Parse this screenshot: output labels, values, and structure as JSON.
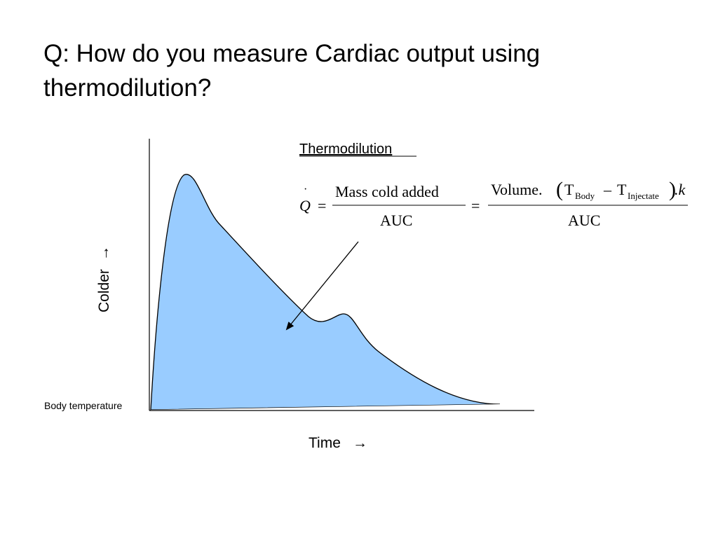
{
  "slide": {
    "title": "Q: How do you measure Cardiac output using thermodilution?"
  },
  "diagram": {
    "heading": "Thermodilution",
    "y_axis_label": "Colder",
    "x_axis_label": "Time",
    "baseline_label": "Body temperature",
    "arrow_glyph": "→",
    "curve_fill_color": "#99ccff",
    "formula": {
      "q_symbol": "Q",
      "q_dot": "·",
      "equals": "=",
      "numerator_1": "Mass cold added",
      "denominator_1": "AUC",
      "volume": "Volume.",
      "open_paren": "(",
      "t_body": "T",
      "body_sub": "Body",
      "minus": "–",
      "t_injectate": "T",
      "injectate_sub": "Injectate",
      "close_paren": ")",
      "k_factor": ".k",
      "denominator_2": "AUC"
    }
  }
}
